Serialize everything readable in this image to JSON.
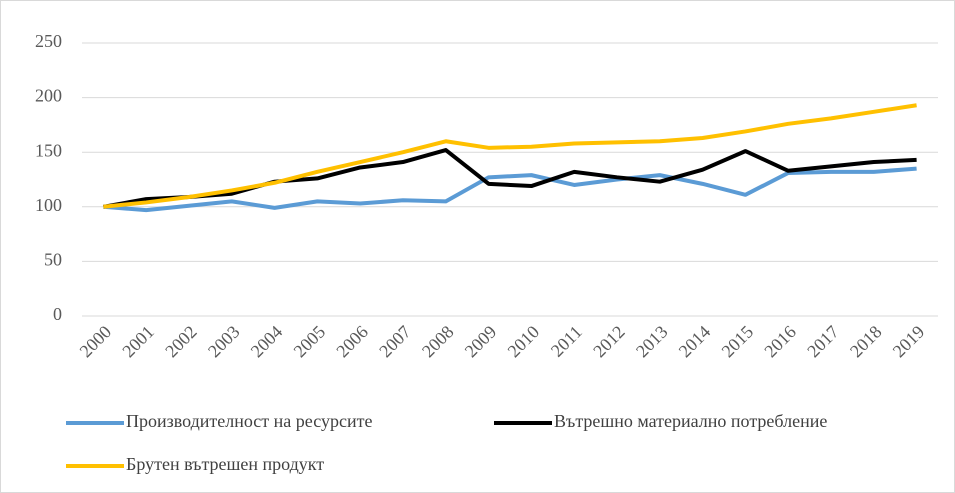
{
  "chart_data": {
    "type": "line",
    "x": [
      "2000",
      "2001",
      "2002",
      "2003",
      "2004",
      "2005",
      "2006",
      "2007",
      "2008",
      "2009",
      "2010",
      "2011",
      "2012",
      "2013",
      "2014",
      "2015",
      "2016",
      "2017",
      "2018",
      "2019"
    ],
    "series": [
      {
        "name": "Производителност на ресурсите",
        "color": "#5b9bd5",
        "values": [
          100,
          97,
          101,
          105,
          99,
          105,
          103,
          106,
          105,
          127,
          129,
          120,
          125,
          129,
          121,
          111,
          131,
          132,
          132,
          135
        ]
      },
      {
        "name": "Вътрешно материално потребление",
        "color": "#000000",
        "values": [
          100,
          107,
          109,
          112,
          123,
          126,
          136,
          141,
          152,
          121,
          119,
          132,
          127,
          123,
          134,
          151,
          133,
          137,
          141,
          143
        ]
      },
      {
        "name": "Брутен вътрешен продукт",
        "color": "#ffc000",
        "values": [
          100,
          104,
          109,
          115,
          122,
          132,
          141,
          150,
          160,
          154,
          155,
          158,
          159,
          160,
          163,
          169,
          176,
          181,
          187,
          193
        ]
      }
    ],
    "ylim": [
      0,
      250
    ],
    "yticks": [
      0,
      50,
      100,
      150,
      200,
      250
    ],
    "grid": true,
    "legend": "bottom"
  }
}
